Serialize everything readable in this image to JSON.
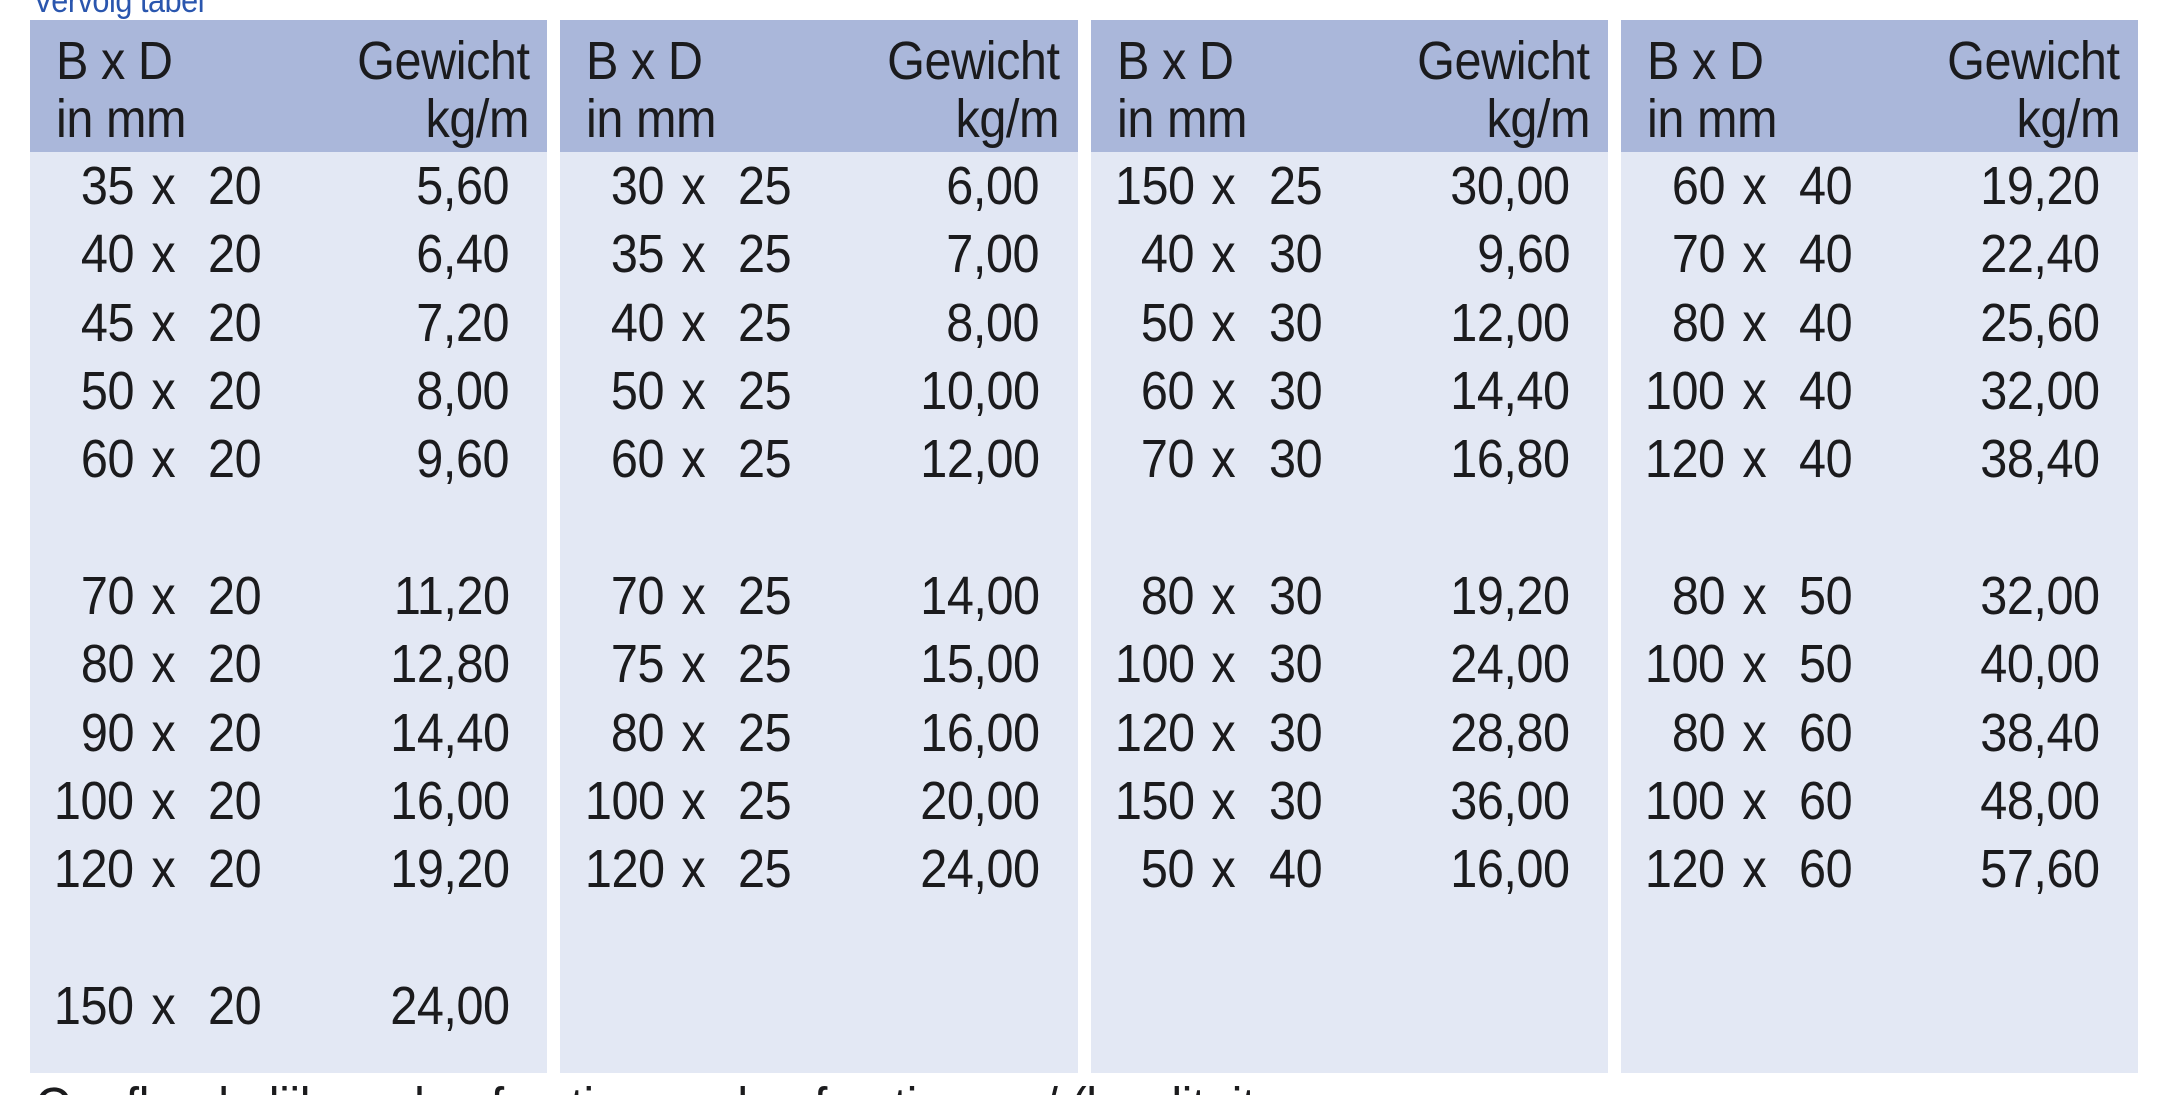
{
  "page": {
    "title": "Vervolg tabel",
    "footnote_fragment": "Onafhankelijk … de afmeting … de afmeting … / (kwaliteit …"
  },
  "table": {
    "column_header": {
      "dim_line1": "B x D",
      "dim_line2": "in mm",
      "weight_line1": "Gewicht",
      "weight_line2": "kg/m"
    },
    "multiply_sign": "x",
    "panels": [
      {
        "rows": [
          {
            "b": "35",
            "d": "20",
            "w": "5,60"
          },
          {
            "b": "40",
            "d": "20",
            "w": "6,40"
          },
          {
            "b": "45",
            "d": "20",
            "w": "7,20"
          },
          {
            "b": "50",
            "d": "20",
            "w": "8,00"
          },
          {
            "b": "60",
            "d": "20",
            "w": "9,60"
          },
          null,
          {
            "b": "70",
            "d": "20",
            "w": "11,20"
          },
          {
            "b": "80",
            "d": "20",
            "w": "12,80"
          },
          {
            "b": "90",
            "d": "20",
            "w": "14,40"
          },
          {
            "b": "100",
            "d": "20",
            "w": "16,00"
          },
          {
            "b": "120",
            "d": "20",
            "w": "19,20"
          },
          null,
          {
            "b": "150",
            "d": "20",
            "w": "24,00"
          }
        ]
      },
      {
        "rows": [
          {
            "b": "30",
            "d": "25",
            "w": "6,00"
          },
          {
            "b": "35",
            "d": "25",
            "w": "7,00"
          },
          {
            "b": "40",
            "d": "25",
            "w": "8,00"
          },
          {
            "b": "50",
            "d": "25",
            "w": "10,00"
          },
          {
            "b": "60",
            "d": "25",
            "w": "12,00"
          },
          null,
          {
            "b": "70",
            "d": "25",
            "w": "14,00"
          },
          {
            "b": "75",
            "d": "25",
            "w": "15,00"
          },
          {
            "b": "80",
            "d": "25",
            "w": "16,00"
          },
          {
            "b": "100",
            "d": "25",
            "w": "20,00"
          },
          {
            "b": "120",
            "d": "25",
            "w": "24,00"
          },
          null,
          null
        ]
      },
      {
        "rows": [
          {
            "b": "150",
            "d": "25",
            "w": "30,00"
          },
          {
            "b": "40",
            "d": "30",
            "w": "9,60"
          },
          {
            "b": "50",
            "d": "30",
            "w": "12,00"
          },
          {
            "b": "60",
            "d": "30",
            "w": "14,40"
          },
          {
            "b": "70",
            "d": "30",
            "w": "16,80"
          },
          null,
          {
            "b": "80",
            "d": "30",
            "w": "19,20"
          },
          {
            "b": "100",
            "d": "30",
            "w": "24,00"
          },
          {
            "b": "120",
            "d": "30",
            "w": "28,80"
          },
          {
            "b": "150",
            "d": "30",
            "w": "36,00"
          },
          {
            "b": "50",
            "d": "40",
            "w": "16,00"
          },
          null,
          null
        ]
      },
      {
        "rows": [
          {
            "b": "60",
            "d": "40",
            "w": "19,20"
          },
          {
            "b": "70",
            "d": "40",
            "w": "22,40"
          },
          {
            "b": "80",
            "d": "40",
            "w": "25,60"
          },
          {
            "b": "100",
            "d": "40",
            "w": "32,00"
          },
          {
            "b": "120",
            "d": "40",
            "w": "38,40"
          },
          null,
          {
            "b": "80",
            "d": "50",
            "w": "32,00"
          },
          {
            "b": "100",
            "d": "50",
            "w": "40,00"
          },
          {
            "b": "80",
            "d": "60",
            "w": "38,40"
          },
          {
            "b": "100",
            "d": "60",
            "w": "48,00"
          },
          {
            "b": "120",
            "d": "60",
            "w": "57,60"
          },
          null,
          null
        ]
      }
    ]
  },
  "colors": {
    "title_blue": "#2a56ae",
    "header_band": "#aab7da",
    "body_band": "#e3e8f4",
    "text": "#1b1b1d",
    "background": "#ffffff"
  }
}
